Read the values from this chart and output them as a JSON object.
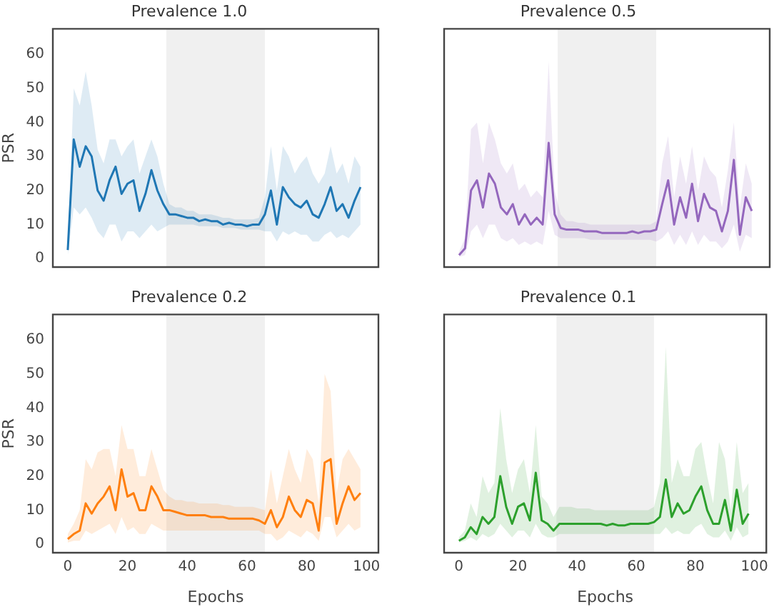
{
  "chart_data": [
    {
      "type": "line",
      "title": "Prevalence 1.0",
      "ylabel": "PSR",
      "tick_labels": "y",
      "xlim": [
        -5,
        104
      ],
      "ylim": [
        -2.5,
        67.5
      ],
      "xticks": [
        0,
        20,
        40,
        60,
        80,
        100
      ],
      "yticks": [
        0,
        10,
        20,
        30,
        40,
        50,
        60
      ],
      "bands": [
        {
          "axis": "x",
          "from": 33,
          "to": 66,
          "color": "#f0f0f0"
        }
      ],
      "x": [
        0,
        2,
        4,
        6,
        8,
        10,
        12,
        14,
        16,
        18,
        20,
        22,
        24,
        26,
        28,
        30,
        32,
        34,
        36,
        38,
        40,
        42,
        44,
        46,
        48,
        50,
        52,
        54,
        56,
        58,
        60,
        62,
        64,
        66,
        68,
        70,
        72,
        74,
        76,
        78,
        80,
        82,
        84,
        86,
        88,
        90,
        92,
        94,
        96,
        98
      ],
      "series": [
        {
          "color": "#1f77b4",
          "values": [
            2.5,
            35,
            27,
            33,
            30,
            20,
            17,
            23,
            27,
            19,
            22,
            23,
            14,
            19,
            26,
            20,
            16,
            13,
            13,
            12.5,
            12,
            12,
            11,
            11.5,
            11,
            11,
            10,
            10.5,
            10,
            10,
            9.5,
            10,
            10,
            13,
            20,
            10,
            21,
            18,
            16,
            15,
            17,
            13,
            12,
            16,
            21,
            14,
            16,
            12,
            17,
            21
          ],
          "lower": [
            1,
            15,
            13,
            15,
            12,
            8,
            6,
            10,
            10,
            5,
            8,
            8,
            6,
            8,
            10,
            8,
            9,
            10,
            10,
            10,
            10,
            10,
            9.5,
            9.5,
            9.5,
            9.5,
            9,
            9,
            9,
            8.5,
            8.5,
            8.5,
            8.5,
            8,
            8,
            5,
            8,
            7,
            8,
            7,
            7,
            5,
            5,
            7,
            8,
            6,
            7,
            6,
            8,
            10
          ],
          "upper": [
            4,
            50,
            45,
            55,
            45,
            32,
            28,
            35,
            35,
            30,
            33,
            35,
            25,
            30,
            35,
            30,
            22,
            16,
            15,
            15,
            14,
            14,
            13,
            13,
            13,
            12.5,
            12,
            12,
            11.5,
            11.5,
            11.5,
            11.5,
            12,
            18,
            33,
            20,
            33,
            30,
            25,
            28,
            30,
            25,
            22,
            25,
            33,
            25,
            28,
            22,
            30,
            27
          ]
        }
      ]
    },
    {
      "type": "line",
      "title": "Prevalence 0.5",
      "tick_labels": false,
      "xlim": [
        -5,
        104
      ],
      "ylim": [
        -2.5,
        67.5
      ],
      "xticks": [
        0,
        20,
        40,
        60,
        80,
        100
      ],
      "yticks": [
        0,
        10,
        20,
        30,
        40,
        50,
        60
      ],
      "bands": [
        {
          "axis": "x",
          "from": 33,
          "to": 66,
          "color": "#f0f0f0"
        }
      ],
      "x": [
        0,
        2,
        4,
        6,
        8,
        10,
        12,
        14,
        16,
        18,
        20,
        22,
        24,
        26,
        28,
        30,
        32,
        34,
        36,
        38,
        40,
        42,
        44,
        46,
        48,
        50,
        52,
        54,
        56,
        58,
        60,
        62,
        64,
        66,
        68,
        70,
        72,
        74,
        76,
        78,
        80,
        82,
        84,
        86,
        88,
        90,
        92,
        94,
        96,
        98
      ],
      "series": [
        {
          "color": "#9467bd",
          "values": [
            1,
            3,
            20,
            23,
            15,
            25,
            22,
            15,
            13,
            16,
            10,
            13,
            10,
            12,
            10,
            34,
            13,
            9,
            8.5,
            8.5,
            8.5,
            8,
            8,
            8,
            7.5,
            7.5,
            7.5,
            7.5,
            7.5,
            8,
            7.5,
            8,
            8,
            8.5,
            16,
            23,
            10,
            18,
            12,
            22,
            11,
            19,
            15,
            14,
            8,
            14,
            29,
            7,
            18,
            14
          ],
          "lower": [
            0.5,
            1,
            8,
            10,
            6,
            10,
            10,
            6,
            5,
            6,
            4,
            5,
            4,
            5,
            4,
            14,
            7,
            6,
            6,
            6,
            6,
            6,
            5.5,
            5.5,
            5.5,
            5.5,
            5.5,
            5.5,
            5.5,
            5.5,
            5.5,
            5.5,
            5.5,
            5,
            6,
            8,
            4,
            7,
            4,
            8,
            4,
            7,
            5,
            5,
            3,
            5,
            10,
            2,
            7,
            6
          ],
          "upper": [
            2,
            6,
            38,
            40,
            28,
            40,
            35,
            28,
            25,
            28,
            20,
            22,
            18,
            20,
            18,
            58,
            20,
            13,
            11,
            11,
            10.5,
            10.5,
            10,
            10,
            10,
            10,
            10,
            10,
            10,
            10,
            10,
            10,
            10,
            11,
            28,
            36,
            18,
            30,
            22,
            33,
            20,
            30,
            26,
            24,
            15,
            26,
            40,
            15,
            28,
            22
          ]
        }
      ]
    },
    {
      "type": "line",
      "title": "Prevalence 0.2",
      "xlabel": "Epochs",
      "ylabel": "PSR",
      "xlim": [
        -5,
        104
      ],
      "ylim": [
        -2.5,
        67.5
      ],
      "xticks": [
        0,
        20,
        40,
        60,
        80,
        100
      ],
      "yticks": [
        0,
        10,
        20,
        30,
        40,
        50,
        60
      ],
      "bands": [
        {
          "axis": "x",
          "from": 33,
          "to": 66,
          "color": "#f0f0f0"
        }
      ],
      "x": [
        0,
        2,
        4,
        6,
        8,
        10,
        12,
        14,
        16,
        18,
        20,
        22,
        24,
        26,
        28,
        30,
        32,
        34,
        36,
        38,
        40,
        42,
        44,
        46,
        48,
        50,
        52,
        54,
        56,
        58,
        60,
        62,
        64,
        66,
        68,
        70,
        72,
        74,
        76,
        78,
        80,
        82,
        84,
        86,
        88,
        90,
        92,
        94,
        96,
        98
      ],
      "series": [
        {
          "color": "#ff7f0e",
          "values": [
            1.5,
            3,
            4,
            12,
            9,
            12,
            14,
            17,
            10,
            22,
            14,
            15,
            10,
            10,
            17,
            14,
            10,
            10,
            9.5,
            9,
            8.5,
            8.5,
            8.5,
            8.5,
            8,
            8,
            8,
            7.5,
            7.5,
            7.5,
            7.5,
            7.5,
            7,
            6,
            10,
            5,
            8,
            14,
            10,
            8,
            13,
            12,
            4,
            24,
            25,
            6,
            12,
            17,
            13,
            15
          ],
          "lower": [
            0.5,
            1,
            1,
            4,
            3,
            4,
            5,
            6,
            3,
            8,
            4,
            5,
            3,
            3,
            6,
            5,
            4,
            4,
            4,
            4,
            4,
            4,
            4,
            4,
            4,
            4,
            4,
            4,
            4,
            4,
            4,
            4,
            4,
            3,
            3,
            1,
            2,
            4,
            3,
            2,
            4,
            3,
            1,
            8,
            8,
            2,
            4,
            6,
            4,
            5
          ],
          "upper": [
            3,
            6,
            10,
            25,
            22,
            27,
            28,
            28,
            20,
            35,
            28,
            28,
            20,
            20,
            28,
            22,
            16,
            14,
            13,
            13,
            12.5,
            12.5,
            12,
            12,
            12,
            12,
            11.5,
            11.5,
            11,
            11,
            11,
            11,
            10.5,
            10,
            22,
            12,
            20,
            28,
            22,
            18,
            28,
            25,
            12,
            50,
            45,
            15,
            25,
            28,
            25,
            22
          ]
        }
      ]
    },
    {
      "type": "line",
      "title": "Prevalence 0.1",
      "xlabel": "Epochs",
      "tick_labels": "x",
      "xlim": [
        -5,
        104
      ],
      "ylim": [
        -2.5,
        67.5
      ],
      "xticks": [
        0,
        20,
        40,
        60,
        80,
        100
      ],
      "yticks": [
        0,
        10,
        20,
        30,
        40,
        50,
        60
      ],
      "bands": [
        {
          "axis": "x",
          "from": 33,
          "to": 66,
          "color": "#f0f0f0"
        }
      ],
      "x": [
        0,
        2,
        4,
        6,
        8,
        10,
        12,
        14,
        16,
        18,
        20,
        22,
        24,
        26,
        28,
        30,
        32,
        34,
        36,
        38,
        40,
        42,
        44,
        46,
        48,
        50,
        52,
        54,
        56,
        58,
        60,
        62,
        64,
        66,
        68,
        70,
        72,
        74,
        76,
        78,
        80,
        82,
        84,
        86,
        88,
        90,
        92,
        94,
        96,
        98
      ],
      "series": [
        {
          "color": "#2ca02c",
          "values": [
            1,
            2,
            5,
            3,
            8,
            6,
            8,
            20,
            11,
            6,
            11,
            12,
            7,
            21,
            7,
            6,
            4,
            6,
            6,
            6,
            6,
            6,
            6,
            6,
            6,
            5.5,
            6,
            5.5,
            5.5,
            6,
            6,
            6,
            6,
            6.5,
            8,
            19,
            8,
            12,
            9,
            10,
            14,
            17,
            10,
            6,
            6,
            13,
            4,
            16,
            6,
            9
          ],
          "lower": [
            0.5,
            1,
            2,
            1,
            3,
            2,
            3,
            6,
            4,
            2,
            4,
            4,
            2,
            6,
            3,
            2,
            2,
            3,
            3,
            3,
            3,
            3,
            3,
            3,
            3,
            3,
            3,
            3,
            3,
            3,
            3,
            3,
            3,
            3,
            3,
            5,
            3,
            4,
            3,
            3,
            5,
            6,
            3,
            2,
            2,
            4,
            1,
            5,
            2,
            3
          ],
          "upper": [
            2,
            4,
            12,
            8,
            20,
            15,
            18,
            40,
            25,
            15,
            22,
            25,
            15,
            35,
            14,
            12,
            8,
            11,
            11,
            11,
            10.5,
            10.5,
            10.5,
            10,
            10,
            10,
            10,
            10,
            10,
            10,
            10,
            10,
            10,
            11,
            18,
            58,
            18,
            25,
            20,
            20,
            28,
            30,
            20,
            12,
            30,
            25,
            10,
            30,
            15,
            18
          ]
        }
      ]
    }
  ]
}
